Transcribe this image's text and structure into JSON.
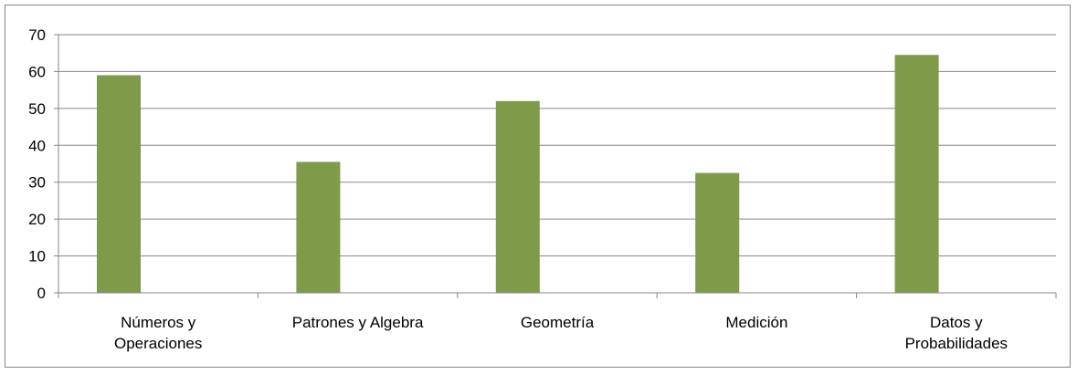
{
  "chart_data": {
    "type": "bar",
    "title": "",
    "xlabel": "",
    "ylabel": "",
    "categories": [
      [
        "Números y",
        "Operaciones"
      ],
      [
        "Patrones y Algebra"
      ],
      [
        "Geometría"
      ],
      [
        "Medición"
      ],
      [
        "Datos y",
        "Probabilidades"
      ]
    ],
    "values": [
      59,
      35.5,
      52,
      32.5,
      64.5
    ],
    "ylim": [
      0,
      70
    ],
    "yticks": [
      0,
      10,
      20,
      30,
      40,
      50,
      60,
      70
    ],
    "grid": true,
    "legend": "none",
    "colors": {
      "bar": "#7f9a48",
      "grid": "#868686",
      "axis": "#868686"
    }
  }
}
